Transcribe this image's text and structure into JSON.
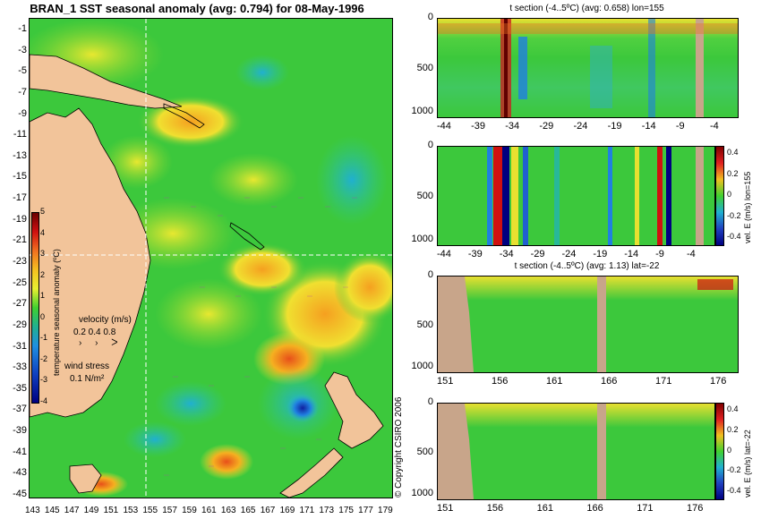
{
  "main_title": "BRAN_1 SST seasonal anomaly (avg: 0.794) for 08-May-1996",
  "map": {
    "lat_ticks": [
      "-1",
      "-3",
      "-5",
      "-7",
      "-9",
      "-11",
      "-13",
      "-15",
      "-17",
      "-19",
      "-21",
      "-23",
      "-25",
      "-27",
      "-29",
      "-31",
      "-33",
      "-35",
      "-37",
      "-39",
      "-41",
      "-43",
      "-45"
    ],
    "lon_ticks": [
      "143",
      "145",
      "147",
      "149",
      "151",
      "153",
      "155",
      "157",
      "159",
      "161",
      "163",
      "165",
      "167",
      "169",
      "171",
      "173",
      "175",
      "177",
      "179"
    ],
    "colorbar_ticks": [
      "5",
      "4",
      "3",
      "2",
      "1",
      "0",
      "-1",
      "-2",
      "-3",
      "-4"
    ],
    "colorbar_label": "temperature seasonal anomaly (ºC)",
    "velocity_label": "velocity (m/s)",
    "velocity_scale": "0.2 0.4 0.8",
    "wind_label": "wind stress",
    "wind_scale": "0.1 N/m²",
    "crosshair_lon": 155,
    "crosshair_lat": -22
  },
  "copyright": "© Copyright CSIRO 2006",
  "panels": [
    {
      "title": "t section (-4..5ºC) (avg: 0.658) lon=155",
      "x_ticks": [
        "-44",
        "-39",
        "-34",
        "-29",
        "-24",
        "-19",
        "-14",
        "-9",
        "-4"
      ],
      "y_ticks": [
        "0",
        "500",
        "1000"
      ]
    },
    {
      "title": "",
      "x_ticks": [
        "-44",
        "-39",
        "-34",
        "-29",
        "-24",
        "-19",
        "-14",
        "-9",
        "-4"
      ],
      "y_ticks": [
        "0",
        "500",
        "1000"
      ],
      "colorbar_ticks": [
        "0.4",
        "0.2",
        "0",
        "-0.2",
        "-0.4"
      ],
      "colorbar_label": "vel. E (m/s) lon=155"
    },
    {
      "title": "t section (-4..5ºC) (avg: 1.13) lat=-22",
      "x_ticks": [
        "151",
        "156",
        "161",
        "166",
        "171",
        "176"
      ],
      "y_ticks": [
        "0",
        "500",
        "1000"
      ]
    },
    {
      "title": "",
      "x_ticks": [
        "151",
        "156",
        "161",
        "166",
        "171",
        "176"
      ],
      "y_ticks": [
        "0",
        "500",
        "1000"
      ],
      "colorbar_ticks": [
        "0.4",
        "0.2",
        "0",
        "-0.2",
        "-0.4"
      ],
      "colorbar_label": "vel. E (m/s) lat=-22"
    }
  ],
  "colors": {
    "land": "#f2c49a",
    "ocean_green": "#2fc82f",
    "section_land": "#c8a58a"
  }
}
